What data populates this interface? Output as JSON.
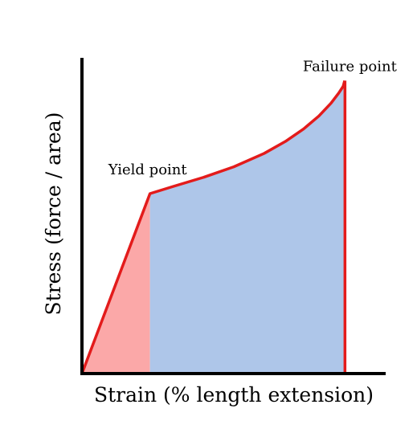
{
  "chart_data": {
    "type": "area",
    "title": "",
    "xlabel": "Strain (% length extension)",
    "ylabel": "Stress (force / area)",
    "xlim": [
      0,
      100
    ],
    "ylim": [
      0,
      100
    ],
    "grid": false,
    "legend": "none",
    "curve": {
      "x": [
        0,
        22.4,
        30,
        40,
        50,
        60,
        67,
        73,
        78,
        82,
        84.5,
        86,
        86.5,
        86.6
      ],
      "y": [
        0,
        63.1,
        65.6,
        68.8,
        72.5,
        77.2,
        81.4,
        85.8,
        90.3,
        94.8,
        98.3,
        100.7,
        102.7,
        94.7
      ]
    },
    "elastic_region": {
      "x_start": 0,
      "x_end": 22.4,
      "color": "#fba8a8"
    },
    "plastic_region": {
      "x_start": 22.4,
      "x_end": 86.6,
      "color": "#aec6e9"
    },
    "failure_drop_x": 86.6,
    "annotations": [
      {
        "id": "yield",
        "text": "Yield point",
        "x": 22.4,
        "y": 63.1
      },
      {
        "id": "failure",
        "text": "Failure point",
        "x": 86.6,
        "y": 102.7
      }
    ],
    "colors": {
      "curve": "#e31b1b",
      "axis": "#000000"
    }
  }
}
